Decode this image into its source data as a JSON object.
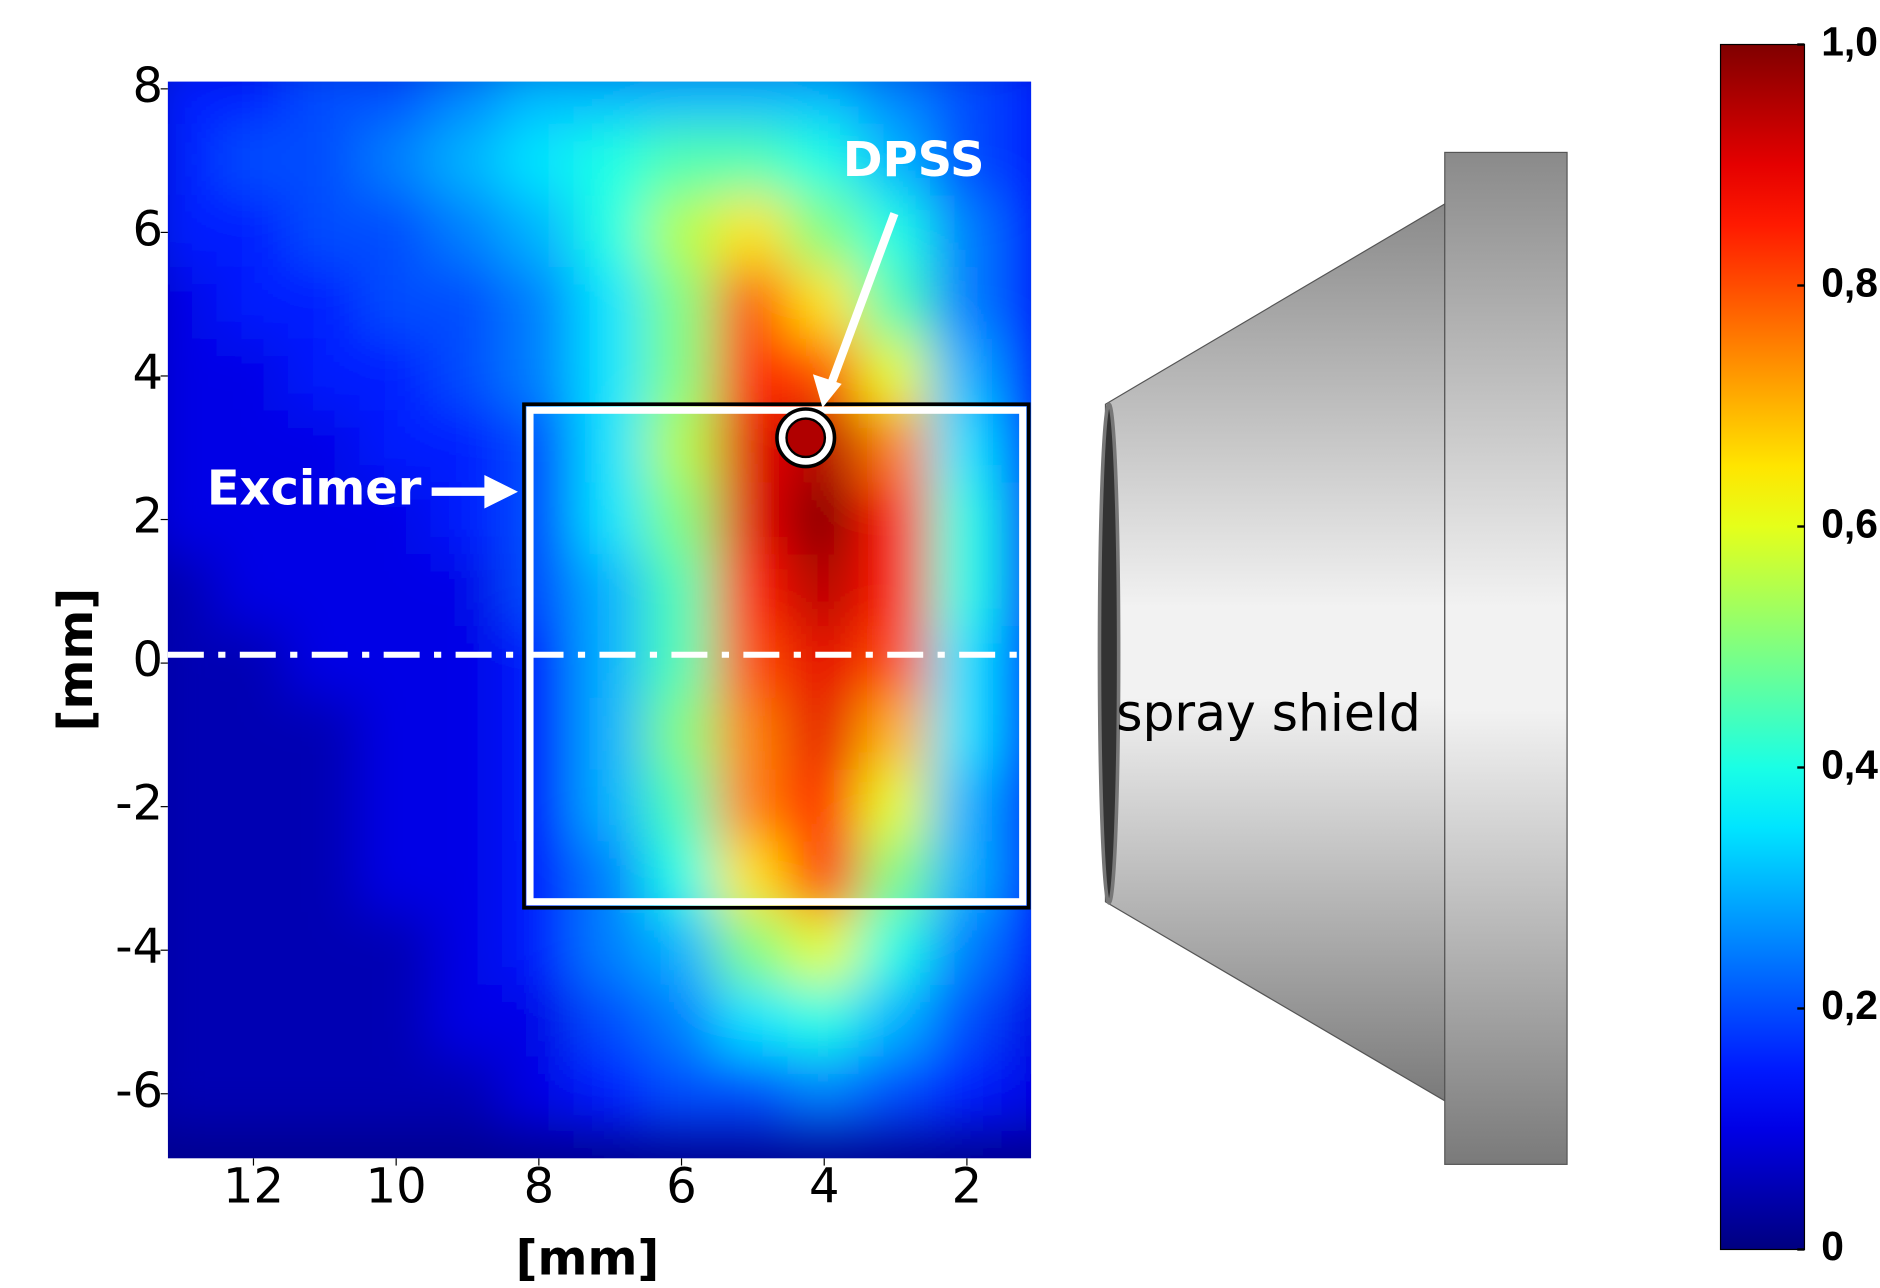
{
  "chart_data": {
    "type": "heatmap",
    "x": [
      13,
      12,
      11,
      10,
      9,
      8,
      7,
      6,
      5,
      4,
      3,
      2,
      1
    ],
    "y": [
      8,
      7,
      6,
      5,
      4,
      3,
      2,
      1,
      0,
      -1,
      -2,
      -3,
      -4,
      -5,
      -6
    ],
    "z": [
      [
        0.15,
        0.15,
        0.2,
        0.2,
        0.25,
        0.3,
        0.3,
        0.3,
        0.3,
        0.3,
        0.25,
        0.2,
        0.15
      ],
      [
        0.15,
        0.2,
        0.2,
        0.25,
        0.3,
        0.35,
        0.4,
        0.45,
        0.45,
        0.4,
        0.3,
        0.2,
        0.15
      ],
      [
        0.15,
        0.15,
        0.2,
        0.2,
        0.25,
        0.3,
        0.4,
        0.55,
        0.65,
        0.5,
        0.4,
        0.25,
        0.15
      ],
      [
        0.1,
        0.15,
        0.15,
        0.2,
        0.2,
        0.25,
        0.35,
        0.5,
        0.8,
        0.65,
        0.45,
        0.25,
        0.15
      ],
      [
        0.1,
        0.1,
        0.15,
        0.15,
        0.2,
        0.25,
        0.35,
        0.5,
        0.85,
        0.8,
        0.6,
        0.3,
        0.15
      ],
      [
        0.1,
        0.1,
        0.1,
        0.15,
        0.15,
        0.2,
        0.35,
        0.55,
        0.9,
        0.95,
        0.75,
        0.35,
        0.15
      ],
      [
        0.1,
        0.1,
        0.1,
        0.1,
        0.15,
        0.2,
        0.35,
        0.5,
        0.9,
        1.0,
        0.85,
        0.4,
        0.15
      ],
      [
        0.05,
        0.1,
        0.1,
        0.1,
        0.1,
        0.2,
        0.3,
        0.45,
        0.85,
        0.95,
        0.85,
        0.4,
        0.15
      ],
      [
        0.05,
        0.05,
        0.1,
        0.1,
        0.1,
        0.15,
        0.3,
        0.45,
        0.8,
        0.9,
        0.8,
        0.35,
        0.15
      ],
      [
        0.05,
        0.05,
        0.05,
        0.1,
        0.1,
        0.15,
        0.3,
        0.5,
        0.75,
        0.9,
        0.7,
        0.35,
        0.15
      ],
      [
        0.05,
        0.05,
        0.05,
        0.1,
        0.1,
        0.15,
        0.3,
        0.45,
        0.75,
        0.85,
        0.6,
        0.3,
        0.15
      ],
      [
        0.05,
        0.05,
        0.05,
        0.1,
        0.1,
        0.15,
        0.25,
        0.4,
        0.65,
        0.85,
        0.5,
        0.3,
        0.15
      ],
      [
        0.05,
        0.05,
        0.05,
        0.05,
        0.1,
        0.15,
        0.25,
        0.3,
        0.5,
        0.6,
        0.4,
        0.25,
        0.15
      ],
      [
        0.05,
        0.05,
        0.05,
        0.05,
        0.1,
        0.1,
        0.2,
        0.25,
        0.35,
        0.4,
        0.3,
        0.2,
        0.1
      ],
      [
        0.05,
        0.05,
        0.05,
        0.05,
        0.05,
        0.1,
        0.15,
        0.2,
        0.2,
        0.25,
        0.2,
        0.15,
        0.1
      ]
    ],
    "xlim": [
      13.2,
      1.1
    ],
    "ylim": [
      -6.9,
      8.1
    ],
    "xticks": [
      12,
      10,
      8,
      6,
      4,
      2
    ],
    "yticks": [
      8,
      6,
      4,
      2,
      0,
      -2,
      -4,
      -6
    ],
    "xlabel": "[mm]",
    "ylabel": "[mm]",
    "colormap": "jet",
    "clim": [
      0,
      1
    ],
    "cticks": [
      0,
      {
        "value": 0.2,
        "label": "0,2"
      },
      {
        "value": 0.4,
        "label": "0,4"
      },
      {
        "value": 0.6,
        "label": "0,6"
      },
      {
        "value": 0.8,
        "label": "0,8"
      },
      {
        "value": 1,
        "label": "1,0"
      }
    ],
    "annotations": [
      "DPSS",
      "Excimer",
      "spray shield"
    ]
  }
}
